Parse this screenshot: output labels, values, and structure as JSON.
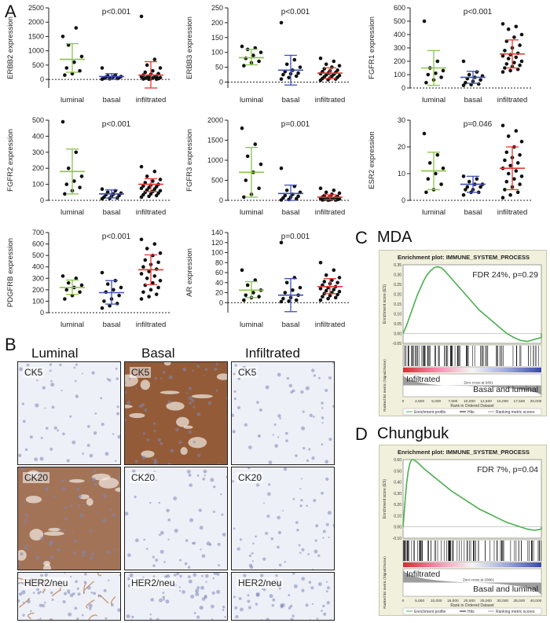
{
  "panel_letters": {
    "A": "A",
    "B": "B",
    "C": "C",
    "D": "D"
  },
  "chart_data": [
    {
      "type": "scatter",
      "id": "erbb2",
      "ylabel": "ERBB2 expression",
      "pvalue": "p<0.001",
      "categories": [
        "luminal",
        "basal",
        "infiltrated"
      ],
      "ylim": [
        -300,
        2500
      ],
      "yticks": [
        0,
        500,
        1000,
        1500,
        2000,
        2500
      ],
      "points": [
        [
          1500,
          1800,
          1200,
          800,
          600,
          400,
          300,
          200,
          150
        ],
        [
          400,
          150,
          120,
          100,
          90,
          80,
          60,
          50,
          40,
          30,
          20,
          10
        ],
        [
          2200,
          700,
          500,
          400,
          300,
          250,
          200,
          180,
          150,
          120,
          100,
          90,
          80,
          70,
          60,
          50,
          40,
          30,
          20,
          15,
          10,
          5
        ]
      ],
      "summary": [
        {
          "mean": 700,
          "sd_low": 250,
          "sd_high": 1250
        },
        {
          "mean": 100,
          "sd_low": 0,
          "sd_high": 200
        },
        {
          "mean": 150,
          "sd_low": -300,
          "sd_high": 620
        }
      ],
      "colors": [
        "#8bc34a",
        "#3f51b5",
        "#e53935"
      ]
    },
    {
      "type": "scatter",
      "id": "erbb3",
      "ylabel": "ERBB3 expression",
      "pvalue": "p<0.001",
      "categories": [
        "luminal",
        "basal",
        "infiltrated"
      ],
      "ylim": [
        -20,
        250
      ],
      "yticks": [
        0,
        50,
        100,
        150,
        200,
        250
      ],
      "points": [
        [
          120,
          115,
          110,
          100,
          90,
          80,
          70,
          65,
          55
        ],
        [
          200,
          75,
          60,
          50,
          40,
          35,
          30,
          28,
          25,
          20,
          15,
          10
        ],
        [
          80,
          70,
          60,
          55,
          50,
          45,
          40,
          38,
          35,
          32,
          30,
          28,
          26,
          24,
          22,
          20,
          18,
          16,
          14,
          12,
          10,
          8,
          6
        ]
      ],
      "summary": [
        {
          "mean": 82,
          "sd_low": 58,
          "sd_high": 110
        },
        {
          "mean": 40,
          "sd_low": -10,
          "sd_high": 90
        },
        {
          "mean": 30,
          "sd_low": 12,
          "sd_high": 48
        }
      ],
      "colors": [
        "#8bc34a",
        "#3f51b5",
        "#e53935"
      ]
    },
    {
      "type": "scatter",
      "id": "fgfr1",
      "ylabel": "FGFR1 expression",
      "pvalue": "p<0.001",
      "categories": [
        "luminal",
        "basal",
        "infiltrated"
      ],
      "ylim": [
        0,
        600
      ],
      "yticks": [
        0,
        100,
        200,
        300,
        400,
        500,
        600
      ],
      "points": [
        [
          500,
          200,
          150,
          130,
          110,
          100,
          80,
          60,
          40
        ],
        [
          200,
          120,
          100,
          90,
          80,
          70,
          60,
          50,
          40,
          30,
          25,
          20
        ],
        [
          480,
          460,
          440,
          400,
          380,
          350,
          320,
          300,
          280,
          260,
          250,
          240,
          230,
          220,
          200,
          190,
          180,
          170,
          160,
          150,
          140,
          130,
          120
        ]
      ],
      "summary": [
        {
          "mean": 150,
          "sd_low": 20,
          "sd_high": 280
        },
        {
          "mean": 80,
          "sd_low": 35,
          "sd_high": 125
        },
        {
          "mean": 255,
          "sd_low": 150,
          "sd_high": 360
        }
      ],
      "colors": [
        "#8bc34a",
        "#3f51b5",
        "#e53935"
      ]
    },
    {
      "type": "scatter",
      "id": "fgfr2",
      "ylabel": "FGFR2 expression",
      "pvalue": "p<0.001",
      "categories": [
        "luminal",
        "basal",
        "infiltrated"
      ],
      "ylim": [
        0,
        500
      ],
      "yticks": [
        0,
        100,
        200,
        300,
        400,
        500
      ],
      "points": [
        [
          490,
          300,
          200,
          150,
          120,
          100,
          80,
          60,
          40
        ],
        [
          70,
          60,
          50,
          45,
          40,
          35,
          30,
          25,
          20,
          15,
          12,
          10
        ],
        [
          210,
          180,
          150,
          130,
          120,
          110,
          100,
          95,
          90,
          85,
          80,
          75,
          70,
          65,
          60,
          55,
          50,
          45,
          40,
          35,
          30,
          25,
          20
        ]
      ],
      "summary": [
        {
          "mean": 180,
          "sd_low": 40,
          "sd_high": 320
        },
        {
          "mean": 40,
          "sd_low": 15,
          "sd_high": 65
        },
        {
          "mean": 100,
          "sd_low": 55,
          "sd_high": 135
        }
      ],
      "colors": [
        "#8bc34a",
        "#3f51b5",
        "#e53935"
      ]
    },
    {
      "type": "scatter",
      "id": "fgfr3",
      "ylabel": "FGFR3 expression",
      "pvalue": "p=0.001",
      "categories": [
        "luminal",
        "basal",
        "infiltrated"
      ],
      "ylim": [
        0,
        2000
      ],
      "yticks": [
        0,
        500,
        1000,
        1500,
        2000
      ],
      "points": [
        [
          1800,
          1400,
          1100,
          900,
          700,
          500,
          300,
          150,
          80
        ],
        [
          800,
          350,
          250,
          200,
          150,
          120,
          100,
          80,
          60,
          40,
          20,
          10
        ],
        [
          300,
          250,
          200,
          180,
          150,
          120,
          100,
          90,
          80,
          70,
          60,
          50,
          45,
          40,
          35,
          30,
          25,
          20,
          15,
          10,
          8,
          5
        ]
      ],
      "summary": [
        {
          "mean": 700,
          "sd_low": 80,
          "sd_high": 1320
        },
        {
          "mean": 170,
          "sd_low": -50,
          "sd_high": 380
        },
        {
          "mean": 80,
          "sd_low": 20,
          "sd_high": 140
        }
      ],
      "colors": [
        "#8bc34a",
        "#3f51b5",
        "#e53935"
      ]
    },
    {
      "type": "scatter",
      "id": "esr2",
      "ylabel": "ESR2 expression",
      "pvalue": "p=0.046",
      "categories": [
        "luminal",
        "basal",
        "infiltrated"
      ],
      "ylim": [
        0,
        30
      ],
      "yticks": [
        0,
        10,
        20,
        30
      ],
      "points": [
        [
          25,
          17,
          14,
          12,
          10,
          8,
          6,
          4,
          3
        ],
        [
          9,
          8,
          7,
          6,
          6,
          5,
          5,
          4,
          4,
          3,
          3,
          2
        ],
        [
          28,
          26,
          24,
          22,
          20,
          18,
          17,
          16,
          15,
          14,
          13,
          12,
          11,
          10,
          9,
          8,
          7,
          6,
          5,
          4,
          3,
          2,
          1
        ]
      ],
      "summary": [
        {
          "mean": 11,
          "sd_low": 4,
          "sd_high": 18
        },
        {
          "mean": 6,
          "sd_low": 3,
          "sd_high": 9
        },
        {
          "mean": 12,
          "sd_low": 4,
          "sd_high": 20
        }
      ],
      "colors": [
        "#8bc34a",
        "#3f51b5",
        "#e53935"
      ]
    },
    {
      "type": "scatter",
      "id": "pdgfrb",
      "ylabel": "PDGFRB expression",
      "pvalue": "p<0.001",
      "categories": [
        "luminal",
        "basal",
        "infiltrated"
      ],
      "ylim": [
        0,
        700
      ],
      "yticks": [
        0,
        100,
        200,
        300,
        400,
        500,
        600,
        700
      ],
      "points": [
        [
          320,
          300,
          260,
          240,
          220,
          200,
          180,
          150,
          120
        ],
        [
          350,
          280,
          250,
          220,
          200,
          180,
          150,
          120,
          100,
          80,
          60,
          40
        ],
        [
          640,
          600,
          560,
          520,
          500,
          460,
          440,
          420,
          400,
          380,
          360,
          340,
          320,
          300,
          280,
          260,
          240,
          220,
          200,
          180,
          160,
          140,
          120
        ]
      ],
      "summary": [
        {
          "mean": 220,
          "sd_low": 160,
          "sd_high": 285
        },
        {
          "mean": 175,
          "sd_low": 75,
          "sd_high": 280
        },
        {
          "mean": 375,
          "sd_low": 245,
          "sd_high": 505
        }
      ],
      "colors": [
        "#8bc34a",
        "#3f51b5",
        "#e53935"
      ]
    },
    {
      "type": "scatter",
      "id": "ar",
      "ylabel": "AR expression",
      "pvalue": "p=0.001",
      "categories": [
        "luminal",
        "basal",
        "infiltrated"
      ],
      "ylim": [
        -20,
        140
      ],
      "yticks": [
        0,
        20,
        40,
        60,
        80,
        100,
        120,
        140
      ],
      "points": [
        [
          65,
          45,
          35,
          25,
          20,
          15,
          12,
          10,
          5
        ],
        [
          120,
          50,
          40,
          30,
          25,
          20,
          15,
          10,
          8,
          5,
          3,
          2
        ],
        [
          80,
          65,
          55,
          50,
          45,
          42,
          40,
          38,
          35,
          32,
          30,
          28,
          26,
          24,
          22,
          20,
          18,
          16,
          14,
          12,
          10,
          8,
          5
        ]
      ],
      "summary": [
        {
          "mean": 25,
          "sd_low": 10,
          "sd_high": 42
        },
        {
          "mean": 15,
          "sd_low": -18,
          "sd_high": 48
        },
        {
          "mean": 32,
          "sd_low": 18,
          "sd_high": 48
        }
      ],
      "colors": [
        "#8bc34a",
        "#3f51b5",
        "#e53935"
      ]
    },
    {
      "type": "line",
      "id": "gsea-mda",
      "title": "Enrichment plot: IMMUNE_SYSTEM_PROCESS",
      "annotation": "FDR 24%, p=0.29",
      "ylabel_top": "Enrichment score (ES)",
      "ylabel_bottom": "Ranked list metric (Signal2Noise)",
      "xlabel": "Rank in Ordered Dataset",
      "label_pos": "Infiltrated",
      "label_neg": "Basal and luminal",
      "zero_cross": "Zero cross at 6401",
      "ylim": [
        -0.05,
        0.35
      ],
      "yticks": [
        0.35,
        0.3,
        0.25,
        0.2,
        0.15,
        0.1,
        0.05,
        0.0,
        -0.05
      ],
      "xlim": [
        0,
        20000
      ],
      "xticks": [
        "0",
        "2,500",
        "5,000",
        "7,500",
        "10,000",
        "12,500",
        "15,000",
        "17,500",
        "20,000"
      ],
      "x": [
        0,
        500,
        1000,
        1500,
        2000,
        2500,
        3000,
        3500,
        4000,
        4500,
        5000,
        5500,
        6000,
        6500,
        7000,
        8000,
        9000,
        10000,
        11000,
        12000,
        13000,
        14000,
        15000,
        16000,
        17000,
        18000,
        19000,
        20000,
        21000
      ],
      "y": [
        0,
        0.04,
        0.09,
        0.14,
        0.19,
        0.23,
        0.27,
        0.3,
        0.32,
        0.335,
        0.34,
        0.335,
        0.32,
        0.3,
        0.28,
        0.24,
        0.2,
        0.16,
        0.12,
        0.09,
        0.06,
        0.03,
        0.0,
        -0.02,
        -0.035,
        -0.04,
        -0.03,
        -0.02,
        0
      ],
      "legend": [
        "Enrichment profile",
        "Hits",
        "Ranking metric scores"
      ]
    },
    {
      "type": "line",
      "id": "gsea-chungbuk",
      "title": "Enrichment plot: IMMUNE_SYSTEM_PROCESS",
      "annotation": "FDR 7%, p=0.04",
      "ylabel_top": "Enrichment score (ES)",
      "ylabel_bottom": "Ranked list metric (Signal2Noise)",
      "xlabel": "Rank in Ordered Dataset",
      "label_pos": "Infiltrated",
      "label_neg": "Basal and luminal",
      "zero_cross": "Zero cross at 20661",
      "ylim": [
        -0.1,
        0.6
      ],
      "yticks": [
        0.6,
        0.5,
        0.4,
        0.3,
        0.2,
        0.1,
        0.0,
        -0.1
      ],
      "xlim": [
        0,
        40000
      ],
      "xticks": [
        "0",
        "5,000",
        "10,000",
        "15,000",
        "20,000",
        "25,000",
        "30,000",
        "35,000",
        "40,000"
      ],
      "x": [
        0,
        500,
        1000,
        1500,
        2000,
        2500,
        3000,
        4000,
        5000,
        6000,
        8000,
        10000,
        12000,
        14000,
        16000,
        18000,
        20000,
        22000,
        24000,
        26000,
        28000,
        30000,
        32000,
        34000,
        36000,
        38000,
        40000,
        41000
      ],
      "y": [
        0,
        0.2,
        0.38,
        0.5,
        0.57,
        0.6,
        0.6,
        0.58,
        0.55,
        0.52,
        0.47,
        0.42,
        0.37,
        0.32,
        0.28,
        0.24,
        0.2,
        0.16,
        0.13,
        0.1,
        0.07,
        0.04,
        0.02,
        0.0,
        -0.02,
        -0.03,
        -0.02,
        0
      ],
      "legend": [
        "Enrichment profile",
        "Hits",
        "Ranking metric scores"
      ]
    }
  ],
  "ihc": {
    "columns": [
      "Luminal",
      "Basal",
      "Infiltrated"
    ],
    "rows": [
      {
        "marker": "CK5",
        "tiles": [
          {
            "label": "CK5"
          },
          {
            "label": "CK5"
          },
          {
            "label": "CK5"
          }
        ]
      },
      {
        "marker": "CK20",
        "tiles": [
          {
            "label": "CK20"
          },
          {
            "label": "CK20"
          },
          {
            "label": "CK20"
          }
        ]
      },
      {
        "marker": "HER2/neu",
        "tiles": [
          {
            "label": "HER2/neu"
          },
          {
            "label": "HER2/neu"
          },
          {
            "label": "HER2/neu"
          }
        ]
      }
    ],
    "stain_colors": {
      "hematoxylin": "#c9cfe6",
      "dab_strong": "#8a4a22",
      "dab_weak": "#c79a7a",
      "background": "#eef0f7"
    }
  },
  "gsea_titles": {
    "C": "MDA",
    "D": "Chungbuk"
  }
}
